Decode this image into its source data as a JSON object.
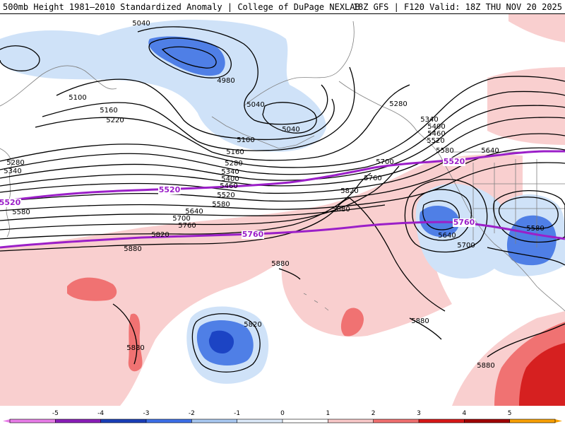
{
  "header": {
    "title_left": "500mb Height 1981–2010 Standardized Anomaly | College of DuPage NEXLAB",
    "title_right": "18Z GFS | F120 Valid: 18Z THU NOV 20 2025"
  },
  "contour_labels": [
    {
      "text": "5040"
    },
    {
      "text": "4980"
    },
    {
      "text": "5040"
    },
    {
      "text": "5040"
    },
    {
      "text": "5100"
    },
    {
      "text": "5160"
    },
    {
      "text": "5220"
    },
    {
      "text": "5100"
    },
    {
      "text": "5160"
    },
    {
      "text": "5280"
    },
    {
      "text": "5340"
    },
    {
      "text": "5280"
    },
    {
      "text": "5340"
    },
    {
      "text": "5400"
    },
    {
      "text": "5460"
    },
    {
      "text": "5520"
    },
    {
      "text": "5580"
    },
    {
      "text": "5640"
    },
    {
      "text": "5700"
    },
    {
      "text": "5760"
    },
    {
      "text": "5820"
    },
    {
      "text": "5880"
    },
    {
      "text": "5760"
    },
    {
      "text": "5820"
    },
    {
      "text": "5880"
    },
    {
      "text": "5880"
    },
    {
      "text": "5820"
    },
    {
      "text": "5880"
    },
    {
      "text": "5880"
    },
    {
      "text": "5880"
    },
    {
      "text": "5280"
    },
    {
      "text": "5340"
    },
    {
      "text": "5400"
    },
    {
      "text": "5460"
    },
    {
      "text": "5520"
    },
    {
      "text": "5580"
    },
    {
      "text": "5640"
    },
    {
      "text": "5640"
    },
    {
      "text": "5700"
    },
    {
      "text": "5580"
    },
    {
      "text": "5700"
    },
    {
      "text": "5580"
    }
  ],
  "highlight_labels": [
    {
      "text": "5520"
    },
    {
      "text": "5520"
    },
    {
      "text": "5520"
    },
    {
      "text": "5760"
    },
    {
      "text": "5760"
    }
  ],
  "legend": {
    "ticks": [
      "-5",
      "-4",
      "-3",
      "-2",
      "-1",
      "0",
      "1",
      "2",
      "3",
      "4",
      "5"
    ],
    "colors": [
      "#e87de8",
      "#8a1fb8",
      "#1b3fb8",
      "#3d6fe8",
      "#a9c8f0",
      "#dce9f8",
      "#ffffff",
      "#f8c8c8",
      "#f07070",
      "#d81818",
      "#a00000",
      "#f8a000"
    ]
  },
  "colors": {
    "neg_light": "#cfe2f8",
    "neg_mid": "#4f7fe6",
    "neg_dark": "#1c44c4",
    "pos_light": "#f9cfcf",
    "pos_mid": "#f07272",
    "pos_dark": "#d62020",
    "contour": "#000000",
    "highlight": "#9b1fc8",
    "border": "#808080"
  }
}
